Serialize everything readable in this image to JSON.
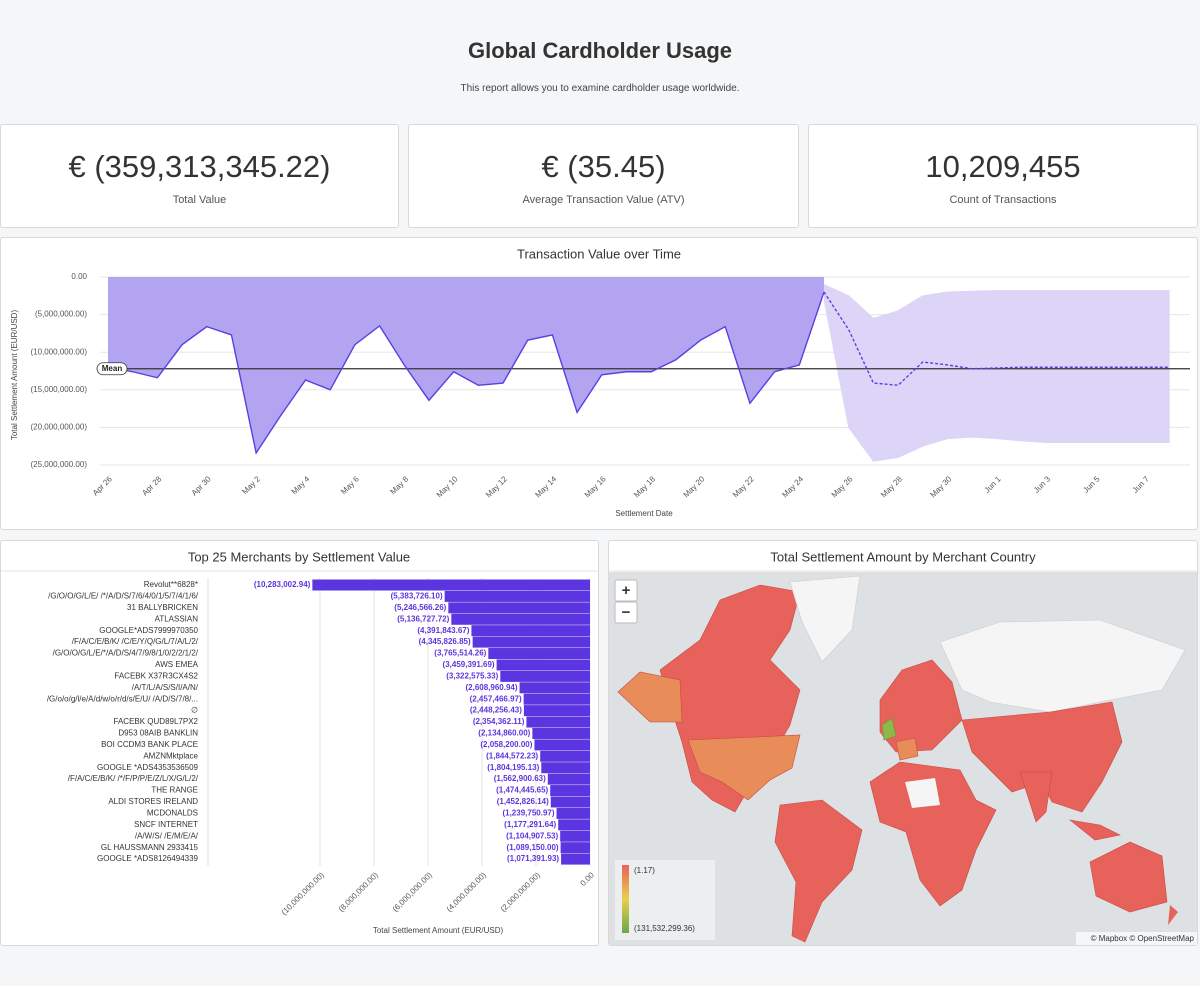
{
  "header": {
    "title": "Global Cardholder Usage",
    "subtitle": "This report allows you to examine cardholder usage worldwide."
  },
  "kpis": [
    {
      "value": "€ (359,313,345.22)",
      "label": "Total Value"
    },
    {
      "value": "€ (35.45)",
      "label": "Average Transaction Value (ATV)"
    },
    {
      "value": "10,209,455",
      "label": "Count of Transactions"
    }
  ],
  "chart_data": [
    {
      "type": "area",
      "title": "Transaction Value over Time",
      "ylabel": "Total Settlement Amount (EUR/USD)",
      "xlabel": "Settlement Date",
      "categories": [
        "Apr 26",
        null,
        "Apr 28",
        null,
        "Apr 30",
        null,
        "May 2",
        null,
        "May 4",
        null,
        "May 6",
        null,
        "May 8",
        null,
        "May 10",
        null,
        "May 12",
        null,
        "May 14",
        null,
        "May 16",
        null,
        "May 18",
        null,
        "May 20",
        null,
        "May 22",
        null,
        "May 24",
        null,
        "May 26",
        null,
        "May 28",
        null,
        "May 30",
        null,
        "Jun 1",
        null,
        "Jun 3",
        null,
        "Jun 5",
        null,
        "Jun 7",
        null
      ],
      "series": [
        {
          "color": "#5b3ee0",
          "area_color": "#b3a4f2",
          "values": [
            -12000000,
            -12600000,
            -13400000,
            -9000000,
            -6600000,
            -7700000,
            -23400000,
            -18400000,
            -13700000,
            -15000000,
            -9000000,
            -6500000,
            -11700000,
            -16400000,
            -12600000,
            -14400000,
            -14100000,
            -8400000,
            -7700000,
            -18000000,
            -13000000,
            -12600000,
            -12600000,
            -11000000,
            -8400000,
            -6600000,
            -16800000,
            -12600000,
            -11700000,
            -2000000,
            null,
            null,
            null,
            null,
            null,
            null,
            null,
            null,
            null,
            null,
            null,
            null,
            null,
            null
          ]
        },
        {
          "color": "#5b3ee0",
          "dashed": true,
          "values": [
            null,
            null,
            null,
            null,
            null,
            null,
            null,
            null,
            null,
            null,
            null,
            null,
            null,
            null,
            null,
            null,
            null,
            null,
            null,
            null,
            null,
            null,
            null,
            null,
            null,
            null,
            null,
            null,
            null,
            -2000000,
            -7000000,
            -14100000,
            -14400000,
            -11300000,
            -11700000,
            -12200000,
            -12100000,
            -12000000,
            -12000000,
            -12000000,
            -12000000,
            -12000000,
            -12000000,
            -12000000
          ]
        }
      ],
      "band": {
        "color": "#ddd5f8",
        "upper": [
          null,
          null,
          null,
          null,
          null,
          null,
          null,
          null,
          null,
          null,
          null,
          null,
          null,
          null,
          null,
          null,
          null,
          null,
          null,
          null,
          null,
          null,
          null,
          null,
          null,
          null,
          null,
          null,
          null,
          -1000000,
          -2500000,
          -5500000,
          -4500000,
          -2500000,
          -2000000,
          -1900000,
          -1800000,
          -1800000,
          -1800000,
          -1800000,
          -1800000,
          -1800000,
          -1800000,
          -1800000
        ],
        "lower": [
          null,
          null,
          null,
          null,
          null,
          null,
          null,
          null,
          null,
          null,
          null,
          null,
          null,
          null,
          null,
          null,
          null,
          null,
          null,
          null,
          null,
          null,
          null,
          null,
          null,
          null,
          null,
          null,
          null,
          -3000000,
          -20000000,
          -24500000,
          -24000000,
          -22500000,
          -21500000,
          -21300000,
          -21500000,
          -21800000,
          -22000000,
          -22000000,
          -22000000,
          -22000000,
          -22000000,
          -22000000
        ]
      },
      "mean": {
        "label": "Mean",
        "value": -12200000
      },
      "ylim": [
        -25000000,
        0
      ],
      "yticks": [
        {
          "value": 0,
          "label": "0.00"
        },
        {
          "value": -5000000,
          "label": "(5,000,000.00)"
        },
        {
          "value": -10000000,
          "label": "(10,000,000.00)"
        },
        {
          "value": -15000000,
          "label": "(15,000,000.00)"
        },
        {
          "value": -20000000,
          "label": "(20,000,000.00)"
        },
        {
          "value": -25000000,
          "label": "(25,000,000.00)"
        }
      ],
      "grid": true
    },
    {
      "type": "bar",
      "orientation": "horizontal",
      "title": "Top 25 Merchants by Settlement Value",
      "xlabel": "Total Settlement Amount (EUR/USD)",
      "color": "#5b35e0",
      "categories": [
        "Revolut**6828*",
        "/G/O/O/G/L/E/ /*/A/D/S/7/6/4/0/1/5/7/4/1/6/",
        "31 BALLYBRICKEN",
        "ATLASSIAN",
        "GOOGLE*ADS7999970350",
        "/F/A/C/E/B/K/ /C/E/Y/Q/G/L/7/A/L/2/",
        "/G/O/O/G/L/E/*/A/D/S/4/7/9/8/1/0/2/2/1/2/",
        "AWS EMEA",
        "FACEBK X37R3CX4S2",
        "/A/T/L/A/S/S/I/A/N/",
        "/G/o/o/g/l/e/A/d/w/o/r/d/s/E/U/ /A/D/S/7/8/...",
        "∅",
        "FACEBK QUD89L7PX2",
        "D953 08AIB BANKLIN",
        "BOI CCDM3 BANK PLACE",
        "AMZNMktplace",
        "GOOGLE *ADS4353536509",
        "/F/A/C/E/B/K/ /*/F/P/P/E/Z/L/X/G/L/2/",
        "THE RANGE",
        "ALDI STORES IRELAND",
        "MCDONALDS",
        "SNCF INTERNET",
        "/A/W/S/ /E/M/E/A/",
        "GL HAUSSMANN 2933415",
        "GOOGLE *ADS8126494339"
      ],
      "values": [
        -10283002.94,
        -5383726.1,
        -5246566.26,
        -5136727.72,
        -4391843.67,
        -4345826.85,
        -3765514.26,
        -3459391.69,
        -3322575.33,
        -2608960.94,
        -2457466.97,
        -2448256.43,
        -2354362.11,
        -2134860.0,
        -2058200.0,
        -1844572.23,
        -1804195.13,
        -1562900.63,
        -1474445.65,
        -1452826.14,
        -1239750.97,
        -1177291.64,
        -1104907.53,
        -1089150.0,
        -1071391.93
      ],
      "value_labels": [
        "(10,283,002.94)",
        "(5,383,726.10)",
        "(5,246,566.26)",
        "(5,136,727.72)",
        "(4,391,843.67)",
        "(4,345,826.85)",
        "(3,765,514.26)",
        "(3,459,391.69)",
        "(3,322,575.33)",
        "(2,608,960.94)",
        "(2,457,466.97)",
        "(2,448,256.43)",
        "(2,354,362.11)",
        "(2,134,860.00)",
        "(2,058,200.00)",
        "(1,844,572.23)",
        "(1,804,195.13)",
        "(1,562,900.63)",
        "(1,474,445.65)",
        "(1,452,826.14)",
        "(1,239,750.97)",
        "(1,177,291.64)",
        "(1,104,907.53)",
        "(1,089,150.00)",
        "(1,071,391.93)"
      ],
      "xlim": [
        -14000000,
        0
      ],
      "xticks": [
        {
          "value": -10000000,
          "label": "(10,000,000.00)"
        },
        {
          "value": -8000000,
          "label": "(8,000,000.00)"
        },
        {
          "value": -6000000,
          "label": "(6,000,000.00)"
        },
        {
          "value": -4000000,
          "label": "(4,000,000.00)"
        },
        {
          "value": -2000000,
          "label": "(2,000,000.00)"
        },
        {
          "value": 0,
          "label": "0.00"
        }
      ],
      "grid": true
    }
  ],
  "map": {
    "title": "Total Settlement Amount by Merchant Country",
    "zoom_in": "+",
    "zoom_out": "−",
    "legend": {
      "min_label": "(1.17)",
      "max_label": "(131,532,299.36)"
    },
    "attribution": "© Mapbox © OpenStreetMap"
  }
}
